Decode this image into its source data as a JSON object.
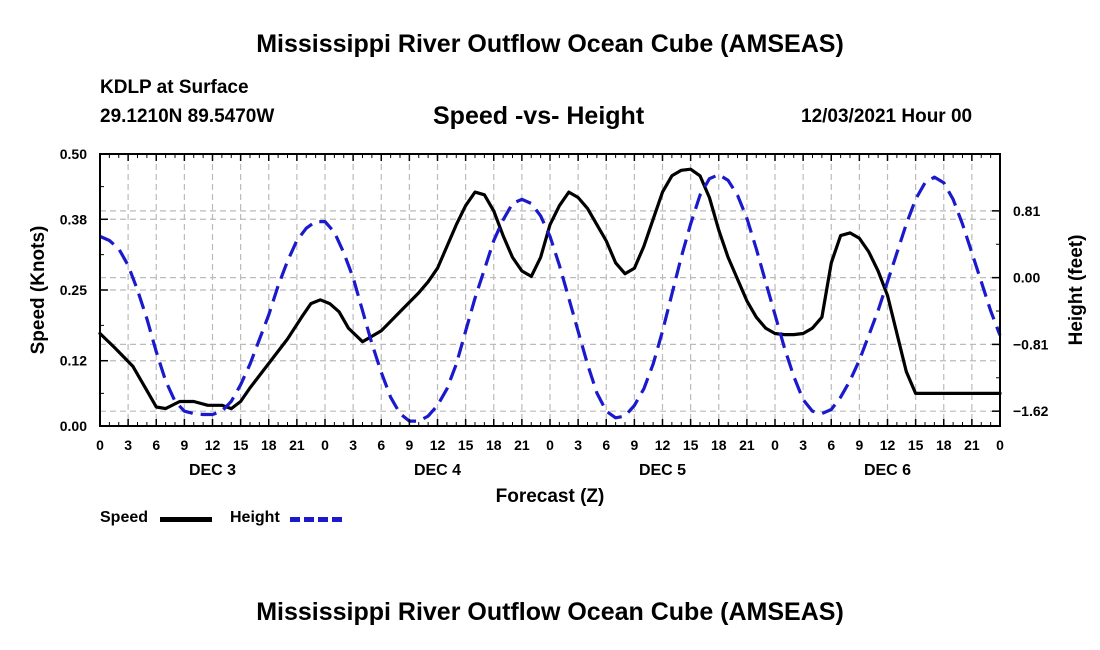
{
  "chart_data": {
    "type": "line",
    "title": "Mississippi River Outflow Ocean Cube (AMSEAS)",
    "footer_title": "Mississippi River Outflow Ocean Cube (AMSEAS)",
    "subtitle": "Speed -vs- Height",
    "station": "KDLP at Surface",
    "location": "29.1210N  89.5470W",
    "datetime": "12/03/2021 Hour 00",
    "xlabel": "Forecast (Z)",
    "ylabel": "Speed (Knots)",
    "y2label": "Height (feet)",
    "xlim": [
      0,
      96
    ],
    "ylim": [
      0,
      0.5
    ],
    "y2lim": [
      -1.8,
      1.5
    ],
    "x_ticks": [
      0,
      3,
      6,
      9,
      12,
      15,
      18,
      21,
      24,
      27,
      30,
      33,
      36,
      39,
      42,
      45,
      48,
      51,
      54,
      57,
      60,
      63,
      66,
      69,
      72,
      75,
      78,
      81,
      84,
      87,
      90,
      93,
      96
    ],
    "x_tick_labels": [
      "0",
      "3",
      "6",
      "9",
      "12",
      "15",
      "18",
      "21",
      "0",
      "3",
      "6",
      "9",
      "12",
      "15",
      "18",
      "21",
      "0",
      "3",
      "6",
      "9",
      "12",
      "15",
      "18",
      "21",
      "0",
      "3",
      "6",
      "9",
      "12",
      "15",
      "18",
      "21",
      "0"
    ],
    "day_labels": [
      {
        "x": 12,
        "label": "DEC 3"
      },
      {
        "x": 36,
        "label": "DEC 4"
      },
      {
        "x": 60,
        "label": "DEC 5"
      },
      {
        "x": 84,
        "label": "DEC 6"
      }
    ],
    "y_ticks": [
      0,
      0.12,
      0.25,
      0.38,
      0.5
    ],
    "y_tick_labels": [
      "0.00",
      "0.12",
      "0.25",
      "0.38",
      "0.50"
    ],
    "y2_ticks": [
      -1.62,
      -0.81,
      0,
      0.81
    ],
    "y2_tick_labels": [
      "−1.62",
      "−0.81",
      "0.00",
      "0.81"
    ],
    "grid": true,
    "legend": {
      "position": "bottom-left",
      "entries": [
        "Speed",
        "Height"
      ]
    },
    "series": [
      {
        "name": "Speed",
        "axis": "left",
        "color": "#000000",
        "style": "solid",
        "x": [
          0,
          1.5,
          3.5,
          5,
          6,
          7,
          8.5,
          10,
          11.5,
          13,
          14,
          15,
          16,
          18,
          20,
          21.5,
          22.5,
          23.5,
          24.5,
          25.5,
          26.5,
          28,
          30,
          32,
          34,
          35,
          36,
          37,
          38,
          39,
          40,
          41,
          42,
          43,
          44,
          45,
          46,
          47,
          48,
          49,
          50,
          51,
          52,
          53,
          54,
          55,
          56,
          57,
          58,
          59,
          60,
          61,
          62,
          63,
          64,
          65,
          66,
          67,
          68,
          69,
          70,
          71,
          72,
          73,
          74,
          75,
          76,
          77,
          78,
          79,
          80,
          81,
          82,
          83,
          84,
          85,
          86,
          87,
          88,
          89,
          90,
          91,
          92,
          93,
          94,
          95,
          96
        ],
        "y": [
          0.17,
          0.145,
          0.11,
          0.065,
          0.035,
          0.032,
          0.045,
          0.045,
          0.038,
          0.038,
          0.032,
          0.045,
          0.07,
          0.115,
          0.16,
          0.2,
          0.225,
          0.232,
          0.225,
          0.21,
          0.18,
          0.155,
          0.175,
          0.21,
          0.245,
          0.265,
          0.29,
          0.33,
          0.37,
          0.405,
          0.43,
          0.425,
          0.395,
          0.35,
          0.31,
          0.285,
          0.275,
          0.31,
          0.37,
          0.405,
          0.43,
          0.42,
          0.4,
          0.37,
          0.34,
          0.3,
          0.28,
          0.29,
          0.33,
          0.38,
          0.43,
          0.46,
          0.47,
          0.472,
          0.46,
          0.42,
          0.36,
          0.31,
          0.27,
          0.23,
          0.2,
          0.18,
          0.17,
          0.168,
          0.168,
          0.17,
          0.18,
          0.2,
          0.3,
          0.35,
          0.355,
          0.345,
          0.32,
          0.285,
          0.24,
          0.17,
          0.1,
          0.06,
          0.06,
          0.06,
          0.06,
          0.06,
          0.06,
          0.06,
          0.06,
          0.06,
          0.06
        ]
      },
      {
        "name": "Height",
        "axis": "right",
        "color": "#1a1acc",
        "style": "dashed",
        "x": [
          0,
          1,
          2,
          3,
          4,
          5,
          6,
          7,
          8,
          9,
          10,
          11,
          12,
          13,
          14,
          15,
          16,
          17,
          18,
          19,
          20,
          21,
          22,
          23,
          24,
          25,
          26,
          27,
          28,
          29,
          30,
          31,
          32,
          33,
          34,
          35,
          36,
          37,
          38,
          39,
          40,
          41,
          42,
          43,
          44,
          45,
          46,
          47,
          48,
          49,
          50,
          51,
          52,
          53,
          54,
          55,
          56,
          57,
          58,
          59,
          60,
          61,
          62,
          63,
          64,
          65,
          66,
          67,
          68,
          69,
          70,
          71,
          72,
          73,
          74,
          75,
          76,
          77,
          78,
          79,
          80,
          81,
          82,
          83,
          84,
          85,
          86,
          87,
          88,
          89,
          90,
          91,
          92,
          93,
          94,
          95,
          96
        ],
        "y": [
          0.5,
          0.45,
          0.35,
          0.15,
          -0.15,
          -0.5,
          -0.9,
          -1.25,
          -1.5,
          -1.62,
          -1.65,
          -1.66,
          -1.66,
          -1.62,
          -1.5,
          -1.3,
          -1.05,
          -0.75,
          -0.45,
          -0.1,
          0.2,
          0.45,
          0.6,
          0.68,
          0.68,
          0.55,
          0.3,
          0.0,
          -0.4,
          -0.8,
          -1.15,
          -1.45,
          -1.65,
          -1.74,
          -1.74,
          -1.68,
          -1.55,
          -1.35,
          -1.05,
          -0.65,
          -0.25,
          0.1,
          0.45,
          0.7,
          0.9,
          0.95,
          0.9,
          0.75,
          0.5,
          0.15,
          -0.25,
          -0.65,
          -1.05,
          -1.4,
          -1.62,
          -1.7,
          -1.68,
          -1.55,
          -1.35,
          -1.05,
          -0.65,
          -0.2,
          0.25,
          0.65,
          1.0,
          1.2,
          1.25,
          1.18,
          1.0,
          0.72,
          0.35,
          -0.05,
          -0.45,
          -0.85,
          -1.2,
          -1.48,
          -1.62,
          -1.65,
          -1.6,
          -1.45,
          -1.25,
          -1.0,
          -0.7,
          -0.4,
          -0.05,
          0.3,
          0.65,
          0.95,
          1.15,
          1.22,
          1.15,
          0.95,
          0.65,
          0.3,
          -0.05,
          -0.4,
          -0.7
        ]
      }
    ]
  },
  "legend_labels": {
    "speed": "Speed",
    "height": "Height"
  }
}
